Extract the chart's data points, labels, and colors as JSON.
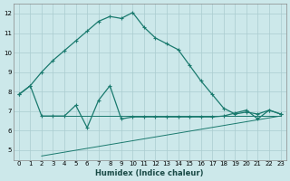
{
  "title": "",
  "xlabel": "Humidex (Indice chaleur)",
  "ylabel": "",
  "bg_color": "#cce8ea",
  "grid_color": "#aacccf",
  "line_color": "#1a7a6e",
  "xlim": [
    -0.5,
    23.5
  ],
  "ylim": [
    4.5,
    12.5
  ],
  "yticks": [
    5,
    6,
    7,
    8,
    9,
    10,
    11,
    12
  ],
  "xticks": [
    0,
    1,
    2,
    3,
    4,
    5,
    6,
    7,
    8,
    9,
    10,
    11,
    12,
    13,
    14,
    15,
    16,
    17,
    18,
    19,
    20,
    21,
    22,
    23
  ],
  "curve_upper_x": [
    0,
    1,
    2,
    3,
    4,
    5,
    6,
    7,
    8,
    9,
    10,
    11,
    12,
    13,
    14,
    15,
    16,
    17,
    18,
    19,
    20,
    21,
    22,
    23
  ],
  "curve_upper_y": [
    7.85,
    8.3,
    9.0,
    9.6,
    10.1,
    10.6,
    11.1,
    11.6,
    11.85,
    11.75,
    12.05,
    11.3,
    10.75,
    10.45,
    10.15,
    9.35,
    8.55,
    7.85,
    7.15,
    6.85,
    6.95,
    6.85,
    7.05,
    6.85
  ],
  "curve_lower_x": [
    0,
    1,
    2,
    3,
    4,
    5,
    6,
    7,
    8,
    9,
    10,
    11,
    12,
    13,
    14,
    15,
    16,
    17,
    18,
    19,
    20,
    21,
    22,
    23
  ],
  "curve_lower_y": [
    7.85,
    8.3,
    6.75,
    6.75,
    6.75,
    7.3,
    6.15,
    7.55,
    8.3,
    6.6,
    6.7,
    6.7,
    6.7,
    6.7,
    6.7,
    6.7,
    6.7,
    6.7,
    6.75,
    6.9,
    7.05,
    6.6,
    7.05,
    6.85
  ],
  "flat_line_x": [
    2,
    23
  ],
  "flat_line_y": [
    6.75,
    6.75
  ],
  "diag_line_x": [
    2,
    23
  ],
  "diag_line_y": [
    4.7,
    6.75
  ]
}
